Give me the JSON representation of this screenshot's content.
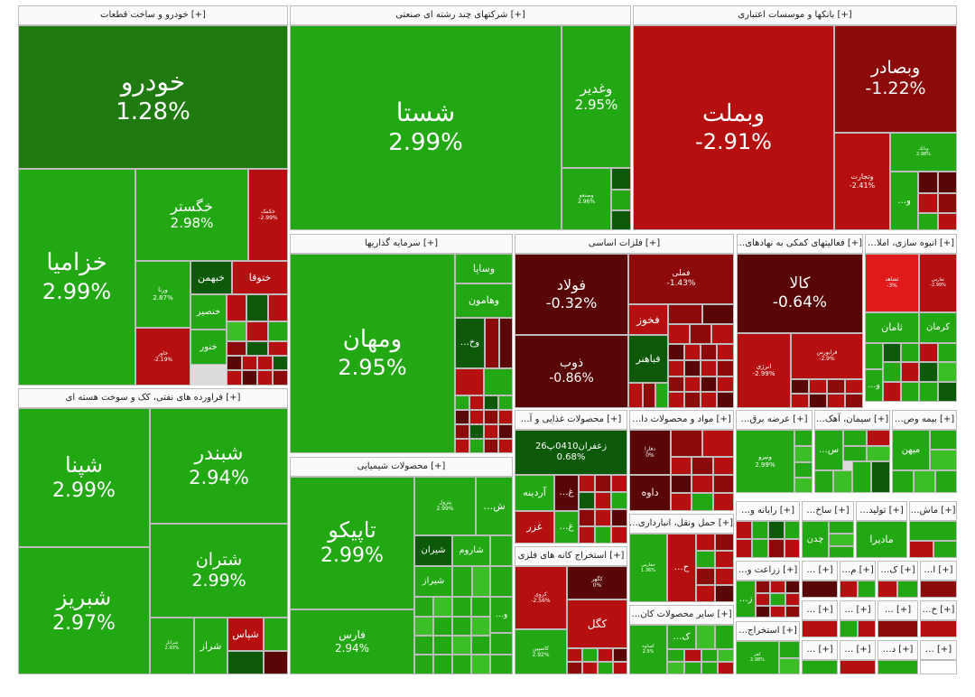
{
  "colors": {
    "dark_green": "#1f7a10",
    "green": "#22a813",
    "light_green": "#3cbf26",
    "deep_green": "#0c5a08",
    "red": "#b50f0f",
    "dark_red": "#8c0a0a",
    "maroon": "#580606",
    "bright_red": "#e01a1a"
  },
  "sectors": [
    {
      "name": "[+] خودرو و ساخت قطعات"
    },
    {
      "name": "[+] شرکتهای چند رشته ای صنعتی"
    },
    {
      "name": "[+] بانکها و موسسات اعتباری"
    },
    {
      "name": "[+] سرمایه گذاریها"
    },
    {
      "name": "[+] فلزات اساسی"
    },
    {
      "name": "[+] فعالیتهای کمکی به نهادهای…"
    },
    {
      "name": "[+] انبوه سازی، املا…"
    },
    {
      "name": "[+] فراورده های نفتی، کک و سوخت هسته ای"
    },
    {
      "name": "[+] محصولات شیمیایی"
    },
    {
      "name": "[+] محصولات غذایی و آ…"
    },
    {
      "name": "[+] مواد و محصولات دا…"
    },
    {
      "name": "[+] عرضه برق…"
    },
    {
      "name": "[+] سیمان، آهک…"
    },
    {
      "name": "[+] بیمه وص…"
    },
    {
      "name": "[+] حمل ونقل، انبارداری…"
    },
    {
      "name": "[+] استخراج کانه های فلزی"
    },
    {
      "name": "[+] رایانه و…"
    },
    {
      "name": "[+] ساخ…"
    },
    {
      "name": "[+] تولید…"
    },
    {
      "name": "[+] ماش…"
    },
    {
      "name": "[+] سایر محصولات کان…"
    },
    {
      "name": "[+] زراعت و…"
    },
    {
      "name": "[+] استخراج…"
    },
    {
      "name": "[+] م…"
    },
    {
      "name": "[+] ک…"
    },
    {
      "name": "[+] ا…"
    },
    {
      "name": "[+] د…"
    },
    {
      "name": "[+] خ…"
    },
    {
      "name": "[+] …"
    }
  ],
  "cells": [
    {
      "symbol": "خودرو",
      "pct": "1.28%"
    },
    {
      "symbol": "خزامیا",
      "pct": "2.99%"
    },
    {
      "symbol": "خگستر",
      "pct": "2.98%"
    },
    {
      "symbol": "خکمک",
      "pct": "-2.99%"
    },
    {
      "symbol": "ورنا",
      "pct": "2.87%"
    },
    {
      "symbol": "خبهمن",
      "pct": ""
    },
    {
      "symbol": "ختوقا",
      "pct": ""
    },
    {
      "symbol": "خنصیر",
      "pct": ""
    },
    {
      "symbol": "خنور",
      "pct": ""
    },
    {
      "symbol": "خاور",
      "pct": "-2.19%"
    },
    {
      "symbol": "شستا",
      "pct": "2.99%"
    },
    {
      "symbol": "وغدیر",
      "pct": "2.95%"
    },
    {
      "symbol": "وصنعو",
      "pct": "2.96%"
    },
    {
      "symbol": "وبملت",
      "pct": "-2.91%"
    },
    {
      "symbol": "وبصادر",
      "pct": "-1.22%"
    },
    {
      "symbol": "وتجارت",
      "pct": "-2.41%"
    },
    {
      "symbol": "وبانک",
      "pct": "2.98%"
    },
    {
      "symbol": "و…",
      "pct": ""
    },
    {
      "symbol": "ومهان",
      "pct": "2.95%"
    },
    {
      "symbol": "وساپا",
      "pct": ""
    },
    {
      "symbol": "وهامون",
      "pct": ""
    },
    {
      "symbol": "وخ…",
      "pct": ""
    },
    {
      "symbol": "فولاد",
      "pct": "-0.32%"
    },
    {
      "symbol": "فملی",
      "pct": "-1.43%"
    },
    {
      "symbol": "فخوز",
      "pct": ""
    },
    {
      "symbol": "ذوب",
      "pct": "-0.86%"
    },
    {
      "symbol": "فباهنر",
      "pct": ""
    },
    {
      "symbol": "کالا",
      "pct": "-0.64%"
    },
    {
      "symbol": "انرژی",
      "pct": "-2.99%"
    },
    {
      "symbol": "فرابورس",
      "pct": "-2.9%"
    },
    {
      "symbol": "ثشاهد",
      "pct": "-3%"
    },
    {
      "symbol": "ثفارس",
      "pct": "-2.99%"
    },
    {
      "symbol": "ثامان",
      "pct": ""
    },
    {
      "symbol": "کرمان",
      "pct": ""
    },
    {
      "symbol": "و…",
      "pct": ""
    },
    {
      "symbol": "شپنا",
      "pct": "2.99%"
    },
    {
      "symbol": "شبندر",
      "pct": "2.94%"
    },
    {
      "symbol": "شبریز",
      "pct": "2.97%"
    },
    {
      "symbol": "شتران",
      "pct": "2.99%"
    },
    {
      "symbol": "شراز",
      "pct": ""
    },
    {
      "symbol": "شپاس",
      "pct": ""
    },
    {
      "symbol": "شرانل",
      "pct": "2.93%"
    },
    {
      "symbol": "تاپیکو",
      "pct": "2.99%"
    },
    {
      "symbol": "فارس",
      "pct": "2.94%"
    },
    {
      "symbol": "پترول",
      "pct": "2.99%"
    },
    {
      "symbol": "ش…",
      "pct": ""
    },
    {
      "symbol": "شیران",
      "pct": ""
    },
    {
      "symbol": "شاروم",
      "pct": ""
    },
    {
      "symbol": "شیراز",
      "pct": ""
    },
    {
      "symbol": "و…",
      "pct": ""
    },
    {
      "symbol": "زعفران0410پ26",
      "pct": "0.68%"
    },
    {
      "symbol": "آردینه",
      "pct": ""
    },
    {
      "symbol": "غ…",
      "pct": ""
    },
    {
      "symbol": "غ…",
      "pct": ""
    },
    {
      "symbol": "غزر",
      "pct": ""
    },
    {
      "symbol": "دفارا",
      "pct": "0%"
    },
    {
      "symbol": "داوه",
      "pct": ""
    },
    {
      "symbol": "ونیرو",
      "pct": "2.99%"
    },
    {
      "symbol": "س…",
      "pct": ""
    },
    {
      "symbol": "میهن",
      "pct": ""
    },
    {
      "symbol": "حفارس",
      "pct": "1.36%"
    },
    {
      "symbol": "ح…",
      "pct": ""
    },
    {
      "symbol": "کروی",
      "pct": "-2.56%"
    },
    {
      "symbol": "کگهر",
      "pct": "0%"
    },
    {
      "symbol": "کگل",
      "pct": ""
    },
    {
      "symbol": "کاسپین",
      "pct": "2.92%"
    },
    {
      "symbol": "چدن",
      "pct": ""
    },
    {
      "symbol": "مادیرا",
      "pct": ""
    },
    {
      "symbol": "کساوه",
      "pct": "2.9%"
    },
    {
      "symbol": "ک…",
      "pct": ""
    },
    {
      "symbol": "ز…",
      "pct": ""
    },
    {
      "symbol": "کفر",
      "pct": "2.98%"
    }
  ]
}
